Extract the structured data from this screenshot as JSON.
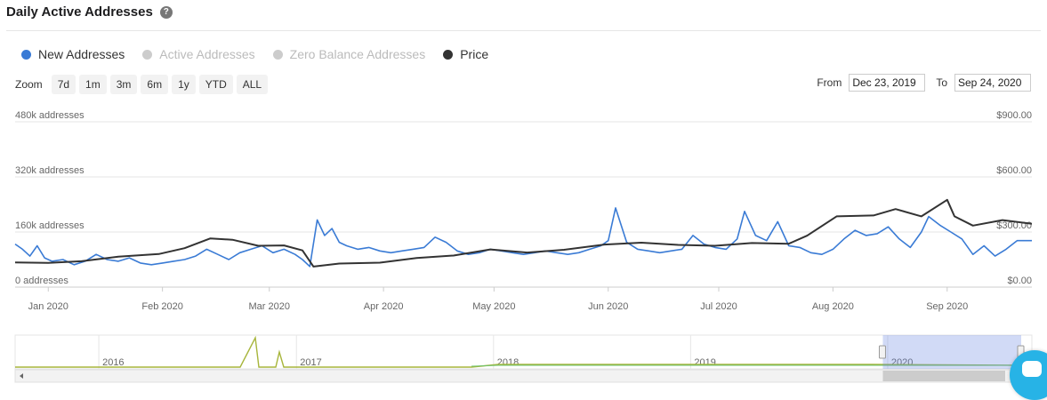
{
  "header": {
    "title": "Daily Active Addresses",
    "help_icon": "question-circle-icon"
  },
  "legend": [
    {
      "label": "New Addresses",
      "color": "#3a7bd5",
      "active": true
    },
    {
      "label": "Active Addresses",
      "color": "#cccccc",
      "active": false
    },
    {
      "label": "Zero Balance Addresses",
      "color": "#cccccc",
      "active": false
    },
    {
      "label": "Price",
      "color": "#333333",
      "active": true
    }
  ],
  "zoom": {
    "label": "Zoom",
    "buttons": [
      "7d",
      "1m",
      "3m",
      "6m",
      "1y",
      "YTD",
      "ALL"
    ]
  },
  "range": {
    "from_label": "From",
    "from_value": "Dec 23, 2019",
    "to_label": "To",
    "to_value": "Sep 24, 2020"
  },
  "chart_data": {
    "type": "line",
    "x_ticks": [
      "Jan 2020",
      "Feb 2020",
      "Mar 2020",
      "Apr 2020",
      "May 2020",
      "Jun 2020",
      "Jul 2020",
      "Aug 2020",
      "Sep 2020"
    ],
    "y_left_ticks": [
      "0 addresses",
      "160k addresses",
      "320k addresses",
      "480k addresses"
    ],
    "y_right_ticks": [
      "$0.00",
      "$300.00",
      "$600.00",
      "$900.00"
    ],
    "y_left_range": [
      0,
      480000
    ],
    "y_right_range": [
      0,
      900
    ],
    "x_range": [
      "2019-12-23",
      "2020-09-24"
    ],
    "grid": true,
    "series": [
      {
        "name": "New Addresses",
        "axis": "left",
        "color": "#3a7bd5",
        "points": [
          [
            "2019-12-23",
            125000
          ],
          [
            "2019-12-25",
            110000
          ],
          [
            "2019-12-27",
            90000
          ],
          [
            "2019-12-29",
            120000
          ],
          [
            "2019-12-31",
            85000
          ],
          [
            "2020-01-02",
            75000
          ],
          [
            "2020-01-05",
            80000
          ],
          [
            "2020-01-08",
            65000
          ],
          [
            "2020-01-11",
            75000
          ],
          [
            "2020-01-14",
            95000
          ],
          [
            "2020-01-17",
            80000
          ],
          [
            "2020-01-20",
            75000
          ],
          [
            "2020-01-23",
            85000
          ],
          [
            "2020-01-26",
            70000
          ],
          [
            "2020-01-29",
            65000
          ],
          [
            "2020-02-01",
            70000
          ],
          [
            "2020-02-04",
            75000
          ],
          [
            "2020-02-07",
            80000
          ],
          [
            "2020-02-10",
            90000
          ],
          [
            "2020-02-13",
            110000
          ],
          [
            "2020-02-16",
            95000
          ],
          [
            "2020-02-19",
            80000
          ],
          [
            "2020-02-22",
            100000
          ],
          [
            "2020-02-25",
            110000
          ],
          [
            "2020-02-28",
            120000
          ],
          [
            "2020-03-02",
            100000
          ],
          [
            "2020-03-05",
            110000
          ],
          [
            "2020-03-08",
            95000
          ],
          [
            "2020-03-10",
            80000
          ],
          [
            "2020-03-12",
            60000
          ],
          [
            "2020-03-14",
            195000
          ],
          [
            "2020-03-16",
            150000
          ],
          [
            "2020-03-18",
            170000
          ],
          [
            "2020-03-20",
            130000
          ],
          [
            "2020-03-22",
            120000
          ],
          [
            "2020-03-25",
            110000
          ],
          [
            "2020-03-28",
            115000
          ],
          [
            "2020-03-31",
            105000
          ],
          [
            "2020-04-03",
            100000
          ],
          [
            "2020-04-06",
            105000
          ],
          [
            "2020-04-09",
            110000
          ],
          [
            "2020-04-12",
            115000
          ],
          [
            "2020-04-15",
            145000
          ],
          [
            "2020-04-18",
            130000
          ],
          [
            "2020-04-21",
            105000
          ],
          [
            "2020-04-24",
            95000
          ],
          [
            "2020-04-27",
            100000
          ],
          [
            "2020-04-30",
            110000
          ],
          [
            "2020-05-03",
            105000
          ],
          [
            "2020-05-06",
            100000
          ],
          [
            "2020-05-09",
            95000
          ],
          [
            "2020-05-12",
            100000
          ],
          [
            "2020-05-15",
            105000
          ],
          [
            "2020-05-18",
            100000
          ],
          [
            "2020-05-21",
            95000
          ],
          [
            "2020-05-24",
            100000
          ],
          [
            "2020-05-27",
            110000
          ],
          [
            "2020-05-30",
            120000
          ],
          [
            "2020-06-01",
            135000
          ],
          [
            "2020-06-03",
            230000
          ],
          [
            "2020-06-06",
            130000
          ],
          [
            "2020-06-09",
            110000
          ],
          [
            "2020-06-12",
            105000
          ],
          [
            "2020-06-15",
            100000
          ],
          [
            "2020-06-18",
            105000
          ],
          [
            "2020-06-21",
            110000
          ],
          [
            "2020-06-24",
            150000
          ],
          [
            "2020-06-27",
            125000
          ],
          [
            "2020-06-30",
            115000
          ],
          [
            "2020-07-03",
            110000
          ],
          [
            "2020-07-06",
            140000
          ],
          [
            "2020-07-08",
            220000
          ],
          [
            "2020-07-11",
            150000
          ],
          [
            "2020-07-14",
            135000
          ],
          [
            "2020-07-17",
            190000
          ],
          [
            "2020-07-20",
            120000
          ],
          [
            "2020-07-23",
            115000
          ],
          [
            "2020-07-26",
            100000
          ],
          [
            "2020-07-29",
            95000
          ],
          [
            "2020-08-01",
            110000
          ],
          [
            "2020-08-04",
            140000
          ],
          [
            "2020-08-07",
            165000
          ],
          [
            "2020-08-10",
            150000
          ],
          [
            "2020-08-13",
            155000
          ],
          [
            "2020-08-16",
            175000
          ],
          [
            "2020-08-19",
            140000
          ],
          [
            "2020-08-22",
            115000
          ],
          [
            "2020-08-25",
            160000
          ],
          [
            "2020-08-27",
            205000
          ],
          [
            "2020-08-30",
            180000
          ],
          [
            "2020-09-02",
            160000
          ],
          [
            "2020-09-05",
            140000
          ],
          [
            "2020-09-08",
            95000
          ],
          [
            "2020-09-11",
            120000
          ],
          [
            "2020-09-14",
            90000
          ],
          [
            "2020-09-17",
            110000
          ],
          [
            "2020-09-20",
            135000
          ],
          [
            "2020-09-24",
            135000
          ]
        ]
      },
      {
        "name": "Price",
        "axis": "right",
        "color": "#333333",
        "points": [
          [
            "2019-12-23",
            134
          ],
          [
            "2020-01-01",
            132
          ],
          [
            "2020-01-10",
            141
          ],
          [
            "2020-01-20",
            166
          ],
          [
            "2020-01-31",
            180
          ],
          [
            "2020-02-07",
            212
          ],
          [
            "2020-02-14",
            265
          ],
          [
            "2020-02-20",
            258
          ],
          [
            "2020-02-27",
            225
          ],
          [
            "2020-03-05",
            227
          ],
          [
            "2020-03-10",
            200
          ],
          [
            "2020-03-13",
            112
          ],
          [
            "2020-03-20",
            128
          ],
          [
            "2020-03-31",
            133
          ],
          [
            "2020-04-10",
            158
          ],
          [
            "2020-04-20",
            172
          ],
          [
            "2020-04-30",
            205
          ],
          [
            "2020-05-10",
            188
          ],
          [
            "2020-05-20",
            203
          ],
          [
            "2020-05-31",
            232
          ],
          [
            "2020-06-10",
            242
          ],
          [
            "2020-06-20",
            230
          ],
          [
            "2020-06-30",
            225
          ],
          [
            "2020-07-10",
            240
          ],
          [
            "2020-07-20",
            236
          ],
          [
            "2020-07-25",
            280
          ],
          [
            "2020-08-02",
            385
          ],
          [
            "2020-08-12",
            390
          ],
          [
            "2020-08-18",
            425
          ],
          [
            "2020-08-25",
            385
          ],
          [
            "2020-09-01",
            475
          ],
          [
            "2020-09-03",
            385
          ],
          [
            "2020-09-08",
            335
          ],
          [
            "2020-09-16",
            365
          ],
          [
            "2020-09-24",
            345
          ]
        ]
      }
    ],
    "navigator": {
      "x_ticks": [
        "2016",
        "2017",
        "2018",
        "2019",
        "2020"
      ],
      "selection": [
        "2019-12-23",
        "2020-09-24"
      ]
    }
  }
}
